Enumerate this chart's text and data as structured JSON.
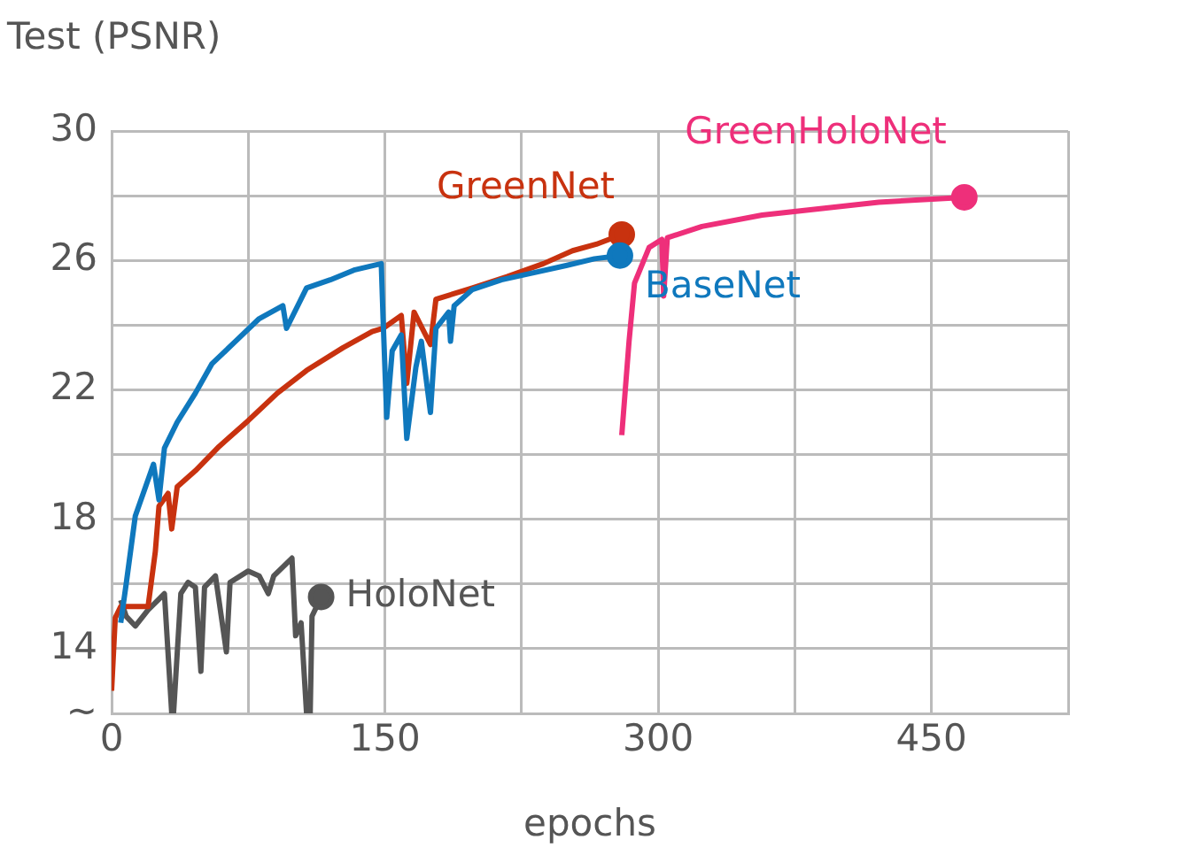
{
  "chart_data": {
    "type": "line",
    "ylabel": "Test (PSNR)",
    "xlabel": "epochs",
    "legend": false,
    "grid": true,
    "xlim": [
      0,
      525
    ],
    "xticks": [
      0,
      {
        "value": 75,
        "label": null
      },
      150,
      {
        "value": 225,
        "label": null
      },
      300,
      {
        "value": 375,
        "label": null
      },
      450,
      {
        "value": 525,
        "label": null
      }
    ],
    "ylim": [
      12,
      30
    ],
    "yticks": [
      {
        "value": 12,
        "label": "~"
      },
      14,
      {
        "value": 16,
        "label": null
      },
      18,
      {
        "value": 20,
        "label": null
      },
      22,
      {
        "value": 24,
        "label": null
      },
      26,
      {
        "value": 28,
        "label": null
      },
      30
    ],
    "series": [
      {
        "name": "BaseNet",
        "color": "#0f78bd",
        "x": [
          5,
          8,
          13,
          23,
          26,
          29,
          36,
          46,
          55,
          68,
          81,
          94,
          96,
          107,
          120,
          133,
          148,
          149,
          151,
          154,
          159,
          162,
          167,
          170,
          175,
          178,
          185,
          186,
          188,
          198,
          214,
          230,
          250,
          265,
          279
        ],
        "values": [
          14.8,
          16.0,
          18.1,
          19.7,
          18.6,
          20.2,
          21.0,
          21.9,
          22.8,
          23.5,
          24.2,
          24.6,
          23.9,
          25.15,
          25.4,
          25.7,
          25.9,
          24.2,
          21.15,
          23.2,
          23.7,
          20.5,
          22.7,
          23.5,
          21.3,
          23.9,
          24.4,
          23.5,
          24.6,
          25.1,
          25.4,
          25.6,
          25.85,
          26.05,
          26.15
        ]
      },
      {
        "name": "GreenNet",
        "color": "#c8320f",
        "x": [
          0,
          2,
          5,
          20,
          24,
          26,
          31,
          33,
          36,
          46,
          59,
          75,
          91,
          107,
          127,
          143,
          149,
          159,
          162,
          166,
          175,
          178,
          198,
          217,
          237,
          253,
          266,
          280
        ],
        "values": [
          12.7,
          14.95,
          15.3,
          15.3,
          17.0,
          18.4,
          18.8,
          17.7,
          19.0,
          19.5,
          20.25,
          21.05,
          21.9,
          22.6,
          23.3,
          23.8,
          23.9,
          24.3,
          22.2,
          24.4,
          23.4,
          24.8,
          25.15,
          25.5,
          25.9,
          26.3,
          26.5,
          26.8
        ]
      },
      {
        "name": "HoloNet",
        "color": "#555555",
        "x": [
          5,
          8,
          13,
          20,
          29,
          33,
          34,
          38,
          42,
          46,
          49,
          51,
          57,
          63,
          65,
          75,
          81,
          86,
          89,
          99,
          101,
          104,
          107,
          109,
          110,
          115
        ],
        "values": [
          15.5,
          15.0,
          14.7,
          15.2,
          15.7,
          12.0,
          12.0,
          15.7,
          16.05,
          15.9,
          13.3,
          15.9,
          16.25,
          13.9,
          16.05,
          16.4,
          16.25,
          15.7,
          16.25,
          16.8,
          14.4,
          14.8,
          12.0,
          12.0,
          15.0,
          15.6
        ]
      },
      {
        "name": "GreenHoloNet",
        "color": "#ee2f7a",
        "x": [
          280,
          284,
          287,
          295,
          302,
          303,
          305,
          324,
          357,
          389,
          421,
          468
        ],
        "values": [
          20.6,
          23.5,
          25.3,
          26.4,
          26.65,
          24.9,
          26.7,
          27.05,
          27.4,
          27.6,
          27.8,
          27.95
        ]
      }
    ]
  }
}
